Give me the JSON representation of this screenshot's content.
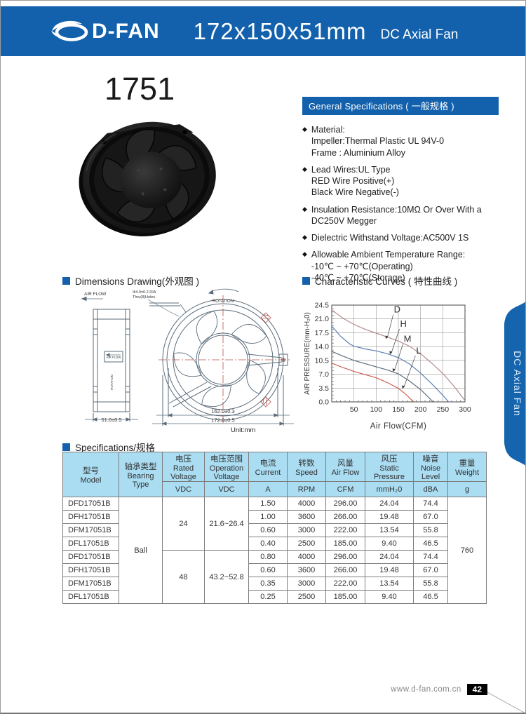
{
  "header": {
    "brand": "D-FAN",
    "title": "172x150x51mm",
    "subtitle": "DC Axial Fan"
  },
  "model_number": "1751",
  "side_tab_label": "DC Axial Fan",
  "general_specs": {
    "title": "General Specifications ( 一般规格 )",
    "items": [
      [
        "Material:",
        "Impeller:Thermal Plastic UL 94V-0",
        "Frame  : Aluminium Alloy"
      ],
      [
        "Lead Wires:UL Type",
        "RED Wire Positive(+)",
        "Black Wire Negative(-)"
      ],
      [
        "Insulation Resistance:10MΩ Or Over With a",
        "DC250V Megger"
      ],
      [
        "Dielectric Withstand Voltage:AC500V 1S"
      ],
      [
        "Allowable Ambient Temperature Range:",
        "-10℃ ~ +70℃(Operating)",
        "-40℃ ~ +70℃(Storage)"
      ]
    ]
  },
  "dimensions": {
    "title": "Dimensions Drawing(外观图 )",
    "air_flow": "AIR FLOW",
    "hole_dia": "Φ4.0±0.2  DIA",
    "hole_note": "Thru(8)Holes",
    "inner_air_flow": "AIR FLOW",
    "inner_rotation": "ROTATION",
    "rotation": "ROTATION",
    "depth_dim": "51.0±0.5",
    "bolt_dim": "162.0±0.3",
    "outer_dim": "172.0±0.5",
    "unit": "Unit:mm"
  },
  "curves_section_title": "Characteristic Curves ( 特性曲线 )",
  "chart_data": {
    "type": "line",
    "title": "Characteristic Curves ( 特性曲线 )",
    "xlabel": "Air  Flow(CFM)",
    "ylabel": "AIR PRESSURE(mm-H₂0)",
    "xlim": [
      0,
      300
    ],
    "ylim": [
      0,
      24.5
    ],
    "grid": true,
    "xticks": [
      50,
      100,
      150,
      200,
      250,
      300
    ],
    "yticks": [
      0,
      3.5,
      7,
      10.5,
      14,
      17.5,
      21,
      24.5
    ],
    "ytick_labels": [
      "0.0",
      "3.5",
      "7.0",
      "10.5",
      "14.0",
      "17.5",
      "21.0",
      "24.5"
    ],
    "series": [
      {
        "name": "D",
        "color": "#b28b8b",
        "points": [
          [
            0,
            23.3
          ],
          [
            25,
            21.2
          ],
          [
            50,
            19.6
          ],
          [
            75,
            18.4
          ],
          [
            100,
            17.4
          ],
          [
            125,
            16.4
          ],
          [
            150,
            15.4
          ],
          [
            175,
            14.1
          ],
          [
            200,
            12.2
          ],
          [
            225,
            9.8
          ],
          [
            250,
            7.2
          ],
          [
            275,
            4.0
          ],
          [
            300,
            0.3
          ]
        ]
      },
      {
        "name": "H",
        "color": "#5b7fb0",
        "points": [
          [
            0,
            19.2
          ],
          [
            20,
            16.6
          ],
          [
            40,
            14.7
          ],
          [
            50,
            14.1
          ],
          [
            75,
            13.4
          ],
          [
            100,
            12.9
          ],
          [
            125,
            12.2
          ],
          [
            150,
            11.2
          ],
          [
            175,
            9.6
          ],
          [
            200,
            7.3
          ],
          [
            225,
            4.6
          ],
          [
            250,
            1.7
          ],
          [
            263,
            0
          ]
        ]
      },
      {
        "name": "M",
        "color": "#5f6c7b",
        "points": [
          [
            0,
            12.8
          ],
          [
            25,
            11.6
          ],
          [
            50,
            10.5
          ],
          [
            75,
            9.7
          ],
          [
            100,
            8.9
          ],
          [
            125,
            8.1
          ],
          [
            150,
            7.1
          ],
          [
            175,
            5.3
          ],
          [
            200,
            3.1
          ],
          [
            215,
            1.5
          ],
          [
            228,
            0
          ]
        ]
      },
      {
        "name": "L",
        "color": "#cd5f50",
        "points": [
          [
            0,
            9.8
          ],
          [
            25,
            8.7
          ],
          [
            50,
            7.7
          ],
          [
            75,
            6.9
          ],
          [
            100,
            6.1
          ],
          [
            125,
            4.9
          ],
          [
            150,
            3.4
          ],
          [
            165,
            2.1
          ],
          [
            178,
            0.7
          ],
          [
            185,
            0
          ]
        ]
      }
    ],
    "labels": [
      {
        "text": "D",
        "x": 140,
        "y": 22.6,
        "ax": 122,
        "ay": 15.9
      },
      {
        "text": "H",
        "x": 154,
        "y": 19.0,
        "ax": 131,
        "ay": 12.0
      },
      {
        "text": "M",
        "x": 162,
        "y": 15.2,
        "ax": 138,
        "ay": 7.6
      },
      {
        "text": "L",
        "x": 190,
        "y": 12.2,
        "ax": 159,
        "ay": 3.3
      }
    ]
  },
  "spec_table": {
    "section_title": "Specifications/规格",
    "columns": [
      {
        "cn": "型号",
        "en": "Model"
      },
      {
        "cn": "轴承类型",
        "en": "Bearing Type"
      },
      {
        "cn": "电压",
        "en": "Rated Voltage",
        "unit": "VDC"
      },
      {
        "cn": "电压范围",
        "en": "Operation Voltage",
        "unit": "VDC"
      },
      {
        "cn": "电流",
        "en": "Current",
        "unit": "A"
      },
      {
        "cn": "转数",
        "en": "Speed",
        "unit": "RPM"
      },
      {
        "cn": "风量",
        "en": "Air Flow",
        "unit": "CFM"
      },
      {
        "cn": "风压",
        "en": "Static Pressure",
        "unit": "mmH₂0"
      },
      {
        "cn": "噪音",
        "en": "Noise Level",
        "unit": "dBA"
      },
      {
        "cn": "重量",
        "en": "Weight",
        "unit": "g"
      }
    ],
    "bearing_type": "Ball",
    "weight": "760",
    "groups": [
      {
        "rated_voltage": "24",
        "operation_voltage": "21.6~26.4",
        "rows": [
          [
            "DFD17051B",
            "1.50",
            "4000",
            "296.00",
            "24.04",
            "74.4"
          ],
          [
            "DFH17051B",
            "1.00",
            "3600",
            "266.00",
            "19.48",
            "67.0"
          ],
          [
            "DFM17051B",
            "0.60",
            "3000",
            "222.00",
            "13.54",
            "55.8"
          ],
          [
            "DFL17051B",
            "0.40",
            "2500",
            "185.00",
            "9.40",
            "46.5"
          ]
        ]
      },
      {
        "rated_voltage": "48",
        "operation_voltage": "43.2~52.8",
        "rows": [
          [
            "DFD17051B",
            "0.80",
            "4000",
            "296.00",
            "24.04",
            "74.4"
          ],
          [
            "DFH17051B",
            "0.60",
            "3600",
            "266.00",
            "19.48",
            "67.0"
          ],
          [
            "DFM17051B",
            "0.35",
            "3000",
            "222.00",
            "13.54",
            "55.8"
          ],
          [
            "DFL17051B",
            "0.25",
            "2500",
            "185.00",
            "9.40",
            "46.5"
          ]
        ]
      }
    ]
  },
  "footer": {
    "website": "www.d-fan.com.cn",
    "page_number": "42"
  }
}
